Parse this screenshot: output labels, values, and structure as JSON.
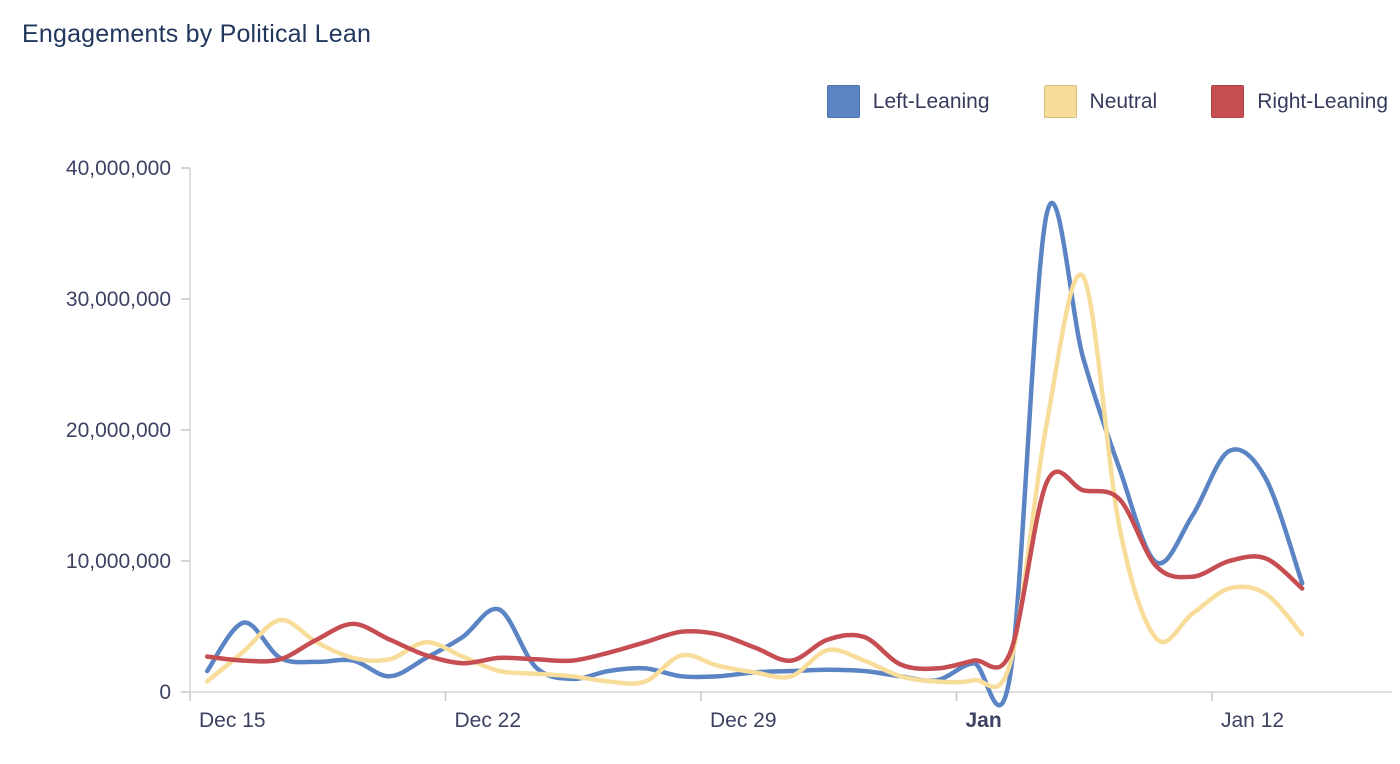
{
  "title": "Engagements by Political Lean",
  "colors": {
    "title_text": "#22375d",
    "axis_text": "#3d4263",
    "axis_line": "#d6d6d6",
    "tick_line": "#c6c6c6",
    "left_leaning": "#5b84c4",
    "neutral": "#f7dd99",
    "right_leaning": "#c64d52"
  },
  "legend": {
    "items": [
      {
        "label": "Left-Leaning",
        "color": "#5b84c4"
      },
      {
        "label": "Neutral",
        "color": "#f7dd99"
      },
      {
        "label": "Right-Leaning",
        "color": "#c64d52"
      }
    ]
  },
  "chart_data": {
    "type": "line",
    "title": "Engagements by Political Lean",
    "xlabel": "",
    "ylabel": "",
    "grid": false,
    "legend_position": "top-right",
    "ylim": [
      0,
      40000000
    ],
    "y_ticks": [
      {
        "label": "0",
        "value": 0
      },
      {
        "label": "10,000,000",
        "value": 10000000
      },
      {
        "label": "20,000,000",
        "value": 20000000
      },
      {
        "label": "30,000,000",
        "value": 30000000
      },
      {
        "label": "40,000,000",
        "value": 40000000
      }
    ],
    "x_ticks": [
      {
        "label": "Dec 15",
        "day": 0,
        "bold": false
      },
      {
        "label": "Dec 22",
        "day": 7,
        "bold": false
      },
      {
        "label": "Dec 29",
        "day": 14,
        "bold": false
      },
      {
        "label": "Jan",
        "day": 21,
        "bold": true
      },
      {
        "label": "Jan 12",
        "day": 28,
        "bold": false
      }
    ],
    "x": [
      "Dec 15",
      "Dec 16",
      "Dec 17",
      "Dec 18",
      "Dec 19",
      "Dec 20",
      "Dec 21",
      "Dec 22",
      "Dec 23",
      "Dec 24",
      "Dec 25",
      "Dec 26",
      "Dec 27",
      "Dec 28",
      "Dec 29",
      "Dec 30",
      "Dec 31",
      "Jan 1",
      "Jan 2",
      "Jan 3",
      "Jan 4",
      "Jan 5",
      "Jan 6",
      "Jan 7",
      "Jan 8",
      "Jan 9",
      "Jan 10",
      "Jan 11",
      "Jan 12",
      "Jan 13",
      "Jan 14"
    ],
    "series": [
      {
        "name": "Left-Leaning",
        "color": "#5b84c4",
        "values": [
          1600000,
          5300000,
          2600000,
          2300000,
          2400000,
          1200000,
          2600000,
          4200000,
          6300000,
          1900000,
          1000000,
          1600000,
          1800000,
          1200000,
          1200000,
          1500000,
          1600000,
          1700000,
          1600000,
          1200000,
          900000,
          2200000,
          1300000,
          36500000,
          25500000,
          17000000,
          9900000,
          13500000,
          18400000,
          16300000,
          8300000
        ]
      },
      {
        "name": "Neutral",
        "color": "#f7dd99",
        "values": [
          800000,
          3100000,
          5500000,
          3800000,
          2600000,
          2500000,
          3800000,
          2700000,
          1600000,
          1400000,
          1200000,
          800000,
          800000,
          2800000,
          2000000,
          1500000,
          1200000,
          3200000,
          2400000,
          1200000,
          800000,
          900000,
          2200000,
          20500000,
          31700000,
          12500000,
          4100000,
          6000000,
          7900000,
          7500000,
          4400000
        ]
      },
      {
        "name": "Right-Leaning",
        "color": "#c64d52",
        "values": [
          2700000,
          2400000,
          2500000,
          4000000,
          5200000,
          4000000,
          2800000,
          2200000,
          2600000,
          2500000,
          2400000,
          3000000,
          3800000,
          4600000,
          4400000,
          3400000,
          2400000,
          4000000,
          4200000,
          2100000,
          1800000,
          2400000,
          3000000,
          16000000,
          15400000,
          14700000,
          9600000,
          8800000,
          10000000,
          10200000,
          7900000
        ]
      }
    ]
  }
}
